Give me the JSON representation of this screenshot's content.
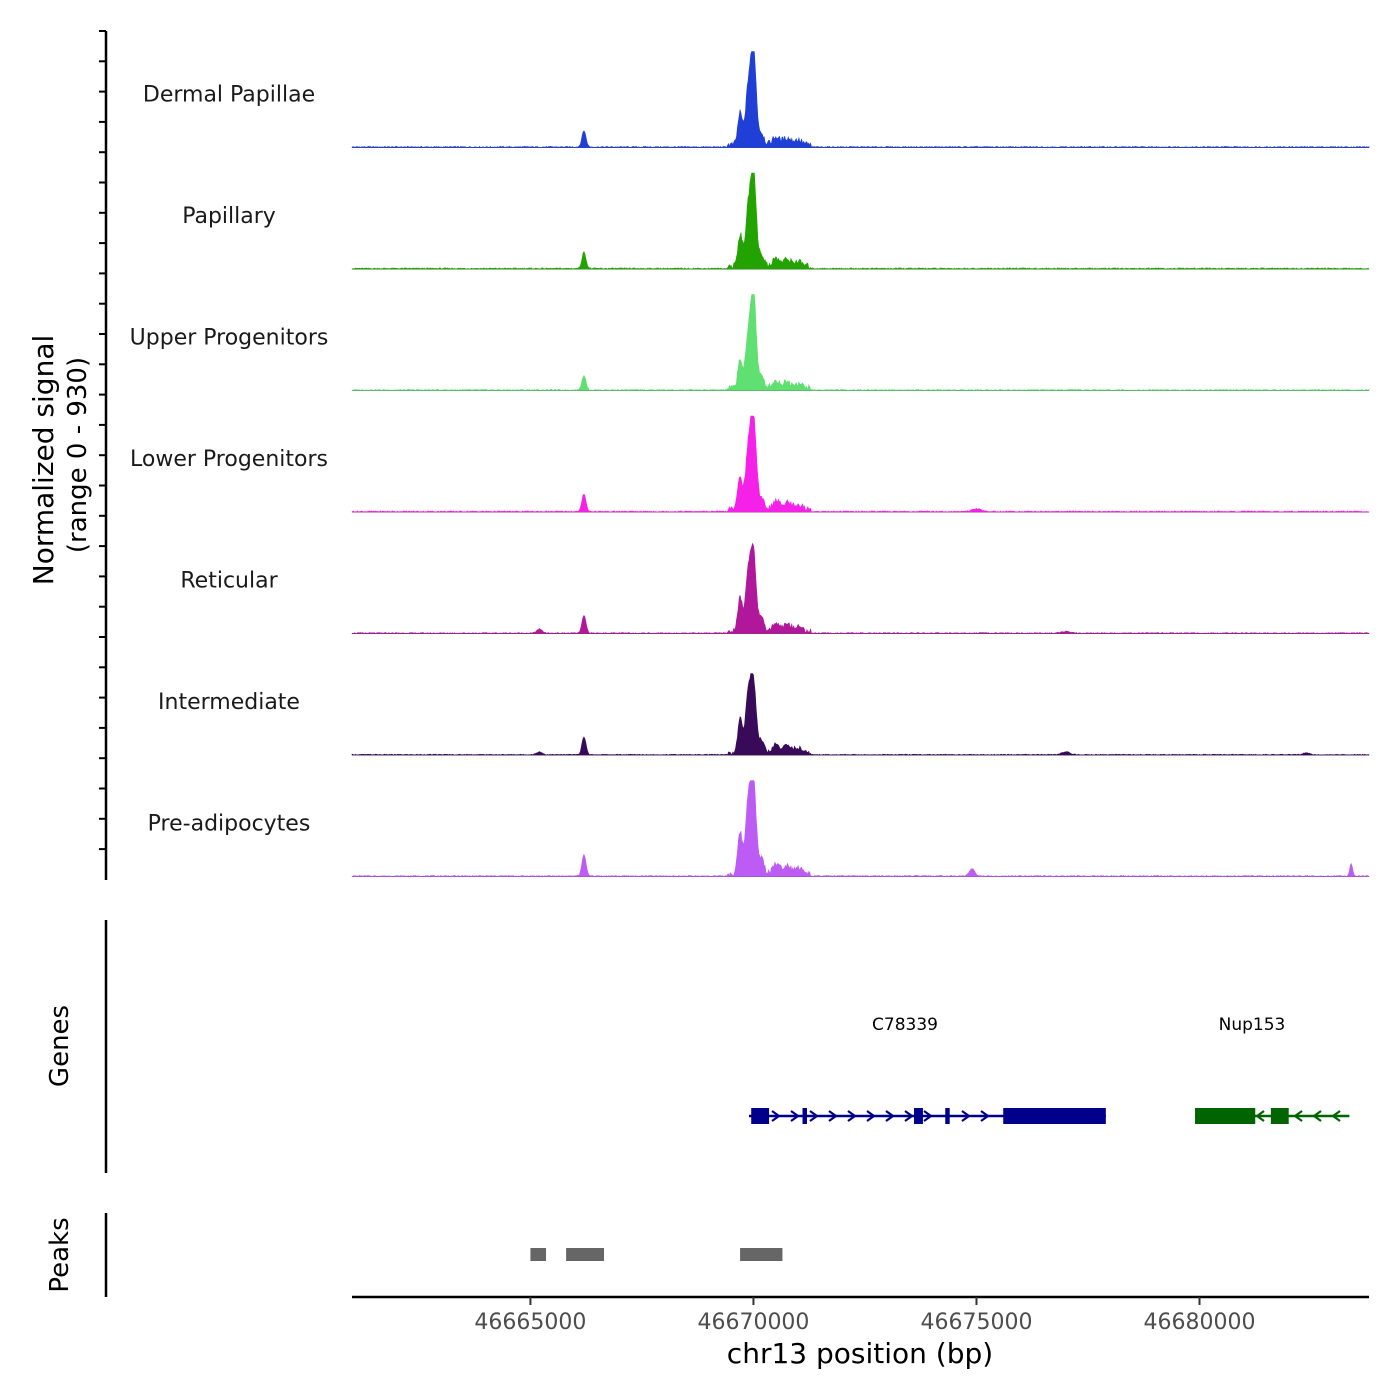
{
  "chart_data": {
    "type": "area",
    "subtype": "genome-coverage-track",
    "y_axis_label_line1": "Normalized signal",
    "y_axis_label_line2": "(range 0 - 930)",
    "y_range": [
      0,
      930
    ],
    "xlabel": "chr13 position (bp)",
    "xlim": [
      46661000,
      46683800
    ],
    "x_ticks": [
      46665000,
      46670000,
      46675000,
      46680000
    ],
    "x_tick_labels": [
      "46665000",
      "46670000",
      "46675000",
      "46680000"
    ],
    "peak_shape": [
      {
        "center": 46670000,
        "width": 60,
        "weight": 1.0
      },
      {
        "center": 46669880,
        "width": 60,
        "weight": 0.55
      },
      {
        "center": 46669700,
        "width": 50,
        "weight": 0.33
      },
      {
        "center": 46670180,
        "width": 60,
        "weight": 0.12
      },
      {
        "center": 46670500,
        "width": 80,
        "weight": 0.08
      },
      {
        "center": 46670750,
        "width": 90,
        "weight": 0.07
      },
      {
        "center": 46671000,
        "width": 90,
        "weight": 0.05
      },
      {
        "center": 46666200,
        "width": 45,
        "weight": 0.17
      }
    ],
    "series": [
      {
        "name": "Dermal Papillae",
        "color": "#1f3fd6",
        "max": 930,
        "secondary_scale": 1.0,
        "extra_peaks": []
      },
      {
        "name": "Papillary",
        "color": "#22a300",
        "max": 930,
        "secondary_scale": 1.0,
        "extra_peaks": []
      },
      {
        "name": "Upper Progenitors",
        "color": "#5fe070",
        "max": 930,
        "secondary_scale": 0.9,
        "extra_peaks": []
      },
      {
        "name": "Lower Progenitors",
        "color": "#f521e8",
        "max": 910,
        "secondary_scale": 1.1,
        "extra_peaks": [
          {
            "center": 46675000,
            "width": 100,
            "weight": 0.03
          }
        ]
      },
      {
        "name": "Reticular",
        "color": "#b0179a",
        "max": 760,
        "secondary_scale": 1.3,
        "extra_peaks": [
          {
            "center": 46665200,
            "width": 60,
            "weight": 0.05
          },
          {
            "center": 46677000,
            "width": 90,
            "weight": 0.02
          }
        ]
      },
      {
        "name": "Intermediate",
        "color": "#3a0a5a",
        "max": 680,
        "secondary_scale": 1.5,
        "extra_peaks": [
          {
            "center": 46665200,
            "width": 60,
            "weight": 0.04
          },
          {
            "center": 46677000,
            "width": 90,
            "weight": 0.04
          },
          {
            "center": 46682400,
            "width": 60,
            "weight": 0.03
          }
        ]
      },
      {
        "name": "Pre-adipocytes",
        "color": "#bd5cf5",
        "max": 880,
        "secondary_scale": 1.4,
        "extra_peaks": [
          {
            "center": 46674900,
            "width": 60,
            "weight": 0.08
          },
          {
            "center": 46683400,
            "width": 30,
            "weight": 0.14
          }
        ]
      }
    ],
    "genes_track_label": "Genes",
    "genes": [
      {
        "name": "C78339",
        "strand": "+",
        "color": "#00008b",
        "start": 46669900,
        "end": 46677900,
        "exons": [
          [
            46669950,
            46670350
          ],
          [
            46671100,
            46671200
          ],
          [
            46673600,
            46673800
          ],
          [
            46674300,
            46674400
          ],
          [
            46675600,
            46677900
          ]
        ]
      },
      {
        "name": "Nup153",
        "strand": "-",
        "color": "#006400",
        "start": 46679900,
        "end": 46682800,
        "exons": [
          [
            46679900,
            46681250
          ],
          [
            46681600,
            46682000
          ]
        ]
      }
    ],
    "peaks_track_label": "Peaks",
    "peaks_color": "#666666",
    "peaks": [
      [
        46665000,
        46665350
      ],
      [
        46665800,
        46666650
      ],
      [
        46669700,
        46670650
      ]
    ]
  }
}
